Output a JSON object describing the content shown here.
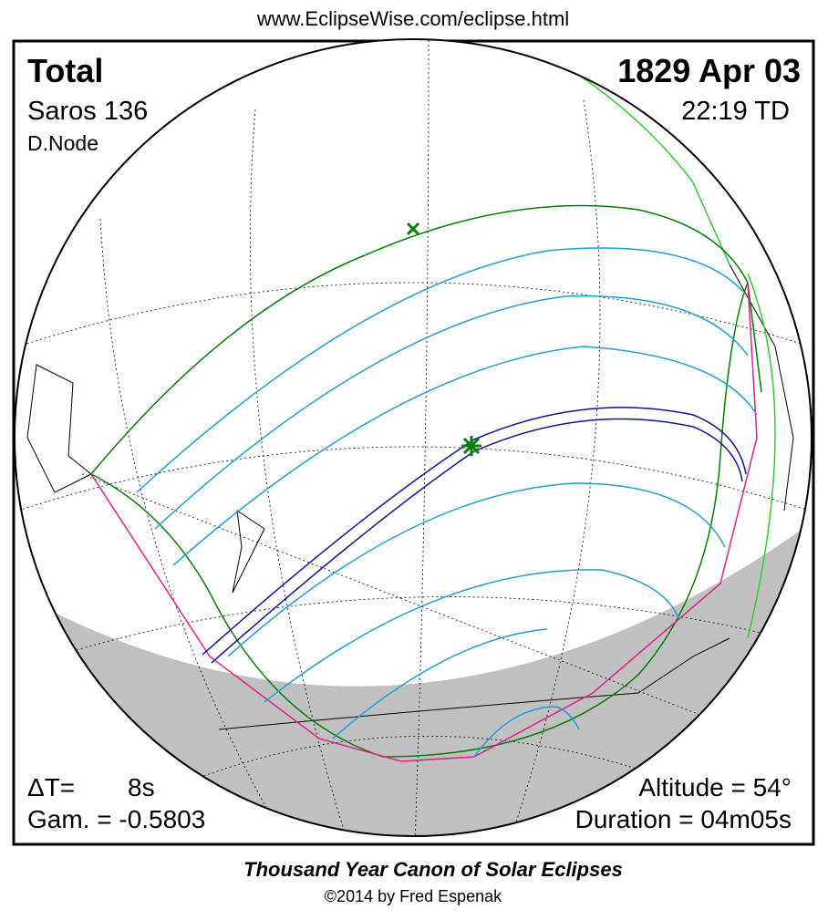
{
  "header": {
    "url": "www.EclipseWise.com/eclipse.html"
  },
  "map": {
    "eclipse_type": "Total",
    "date": "1829 Apr 03",
    "saros": "Saros 136",
    "time": "22:19 TD",
    "node": "D.Node",
    "delta_t_label": "ΔT=",
    "delta_t_value": "8s",
    "gamma": "Gam. = -0.5803",
    "altitude": "Altitude = 54°",
    "duration": "Duration = 04m05s"
  },
  "footer": {
    "title": "Thousand Year Canon of Solar Eclipses",
    "copyright": "©2014 by Fred Espenak"
  }
}
